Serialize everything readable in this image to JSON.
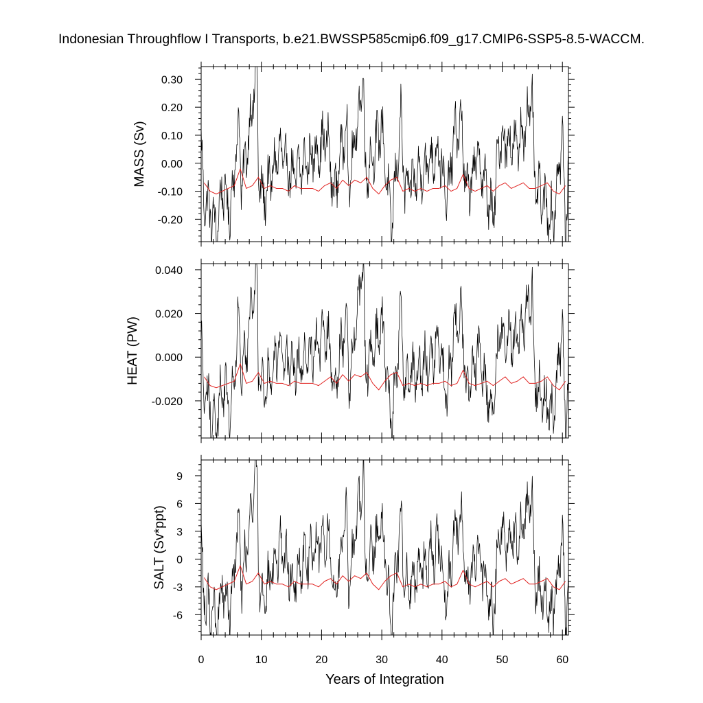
{
  "title": "Indonesian Throughflow I Transports, b.e21.BWSSP585cmip6.f09_g17.CMIP6-SSP5-8.5-WACCM.",
  "colors": {
    "raw": "#000000",
    "annual_mean": "#e0201e"
  },
  "chart_data": [
    {
      "type": "line",
      "panel": "mass",
      "ylabel": "MASS (Sv)",
      "xlim": [
        0,
        61
      ],
      "ylim": [
        -0.28,
        0.345
      ],
      "yticks": [
        -0.2,
        -0.1,
        0.0,
        0.1,
        0.2,
        0.3
      ],
      "ytick_labels": [
        "-0.20",
        "-0.10",
        "0.00",
        "0.10",
        "0.20",
        "0.30"
      ],
      "xticks": [
        0,
        10,
        20,
        30,
        40,
        50,
        60
      ],
      "xtick_labels": [],
      "xlabel": "",
      "series": [
        {
          "style": "raw_monthly",
          "color": "#000000",
          "anchors": [
            [
              0,
              0.07
            ],
            [
              0.4,
              -0.12
            ],
            [
              1.1,
              -0.15
            ],
            [
              2.6,
              -0.24
            ],
            [
              3.5,
              -0.08
            ],
            [
              4.8,
              -0.18
            ],
            [
              6.3,
              0.15
            ],
            [
              6.7,
              -0.1
            ],
            [
              9.3,
              0.345
            ],
            [
              9.5,
              -0.05
            ],
            [
              10.3,
              -0.13
            ],
            [
              13.0,
              0.04
            ],
            [
              15.3,
              -0.05
            ],
            [
              21.0,
              0.09
            ],
            [
              22.0,
              -0.12
            ],
            [
              24.2,
              0.16
            ],
            [
              24.5,
              -0.1
            ],
            [
              27.0,
              0.325
            ],
            [
              27.2,
              -0.05
            ],
            [
              30.0,
              0.13
            ],
            [
              31.6,
              -0.23
            ],
            [
              33.2,
              0.17
            ],
            [
              33.8,
              -0.1
            ],
            [
              39.5,
              0.05
            ],
            [
              40.8,
              -0.15
            ],
            [
              42.0,
              0.1
            ],
            [
              43.3,
              0.14
            ],
            [
              44.0,
              -0.12
            ],
            [
              46.0,
              0.03
            ],
            [
              48.5,
              -0.2
            ],
            [
              49.5,
              0.09
            ],
            [
              52.6,
              0.06
            ],
            [
              55.0,
              0.22
            ],
            [
              55.4,
              -0.08
            ],
            [
              58.5,
              -0.2
            ],
            [
              60.0,
              0.11
            ],
            [
              60.5,
              -0.27
            ],
            [
              61.0,
              -0.02
            ]
          ],
          "seasonal_amplitude": 0.085,
          "noise": 0.05
        },
        {
          "style": "annual_mean",
          "color": "#e0201e",
          "x": [
            0.5,
            1.5,
            2.5,
            3.5,
            4.5,
            5.5,
            6.5,
            7.5,
            8.5,
            9.5,
            10.5,
            11.5,
            12.5,
            13.5,
            14.5,
            15.5,
            16.5,
            17.5,
            18.5,
            19.5,
            20.5,
            21.5,
            22.5,
            23.5,
            24.5,
            25.5,
            26.5,
            27.5,
            28.5,
            29.5,
            30.5,
            31.5,
            32.5,
            33.5,
            34.5,
            35.5,
            36.5,
            37.5,
            38.5,
            39.5,
            40.5,
            41.5,
            42.5,
            43.5,
            44.5,
            45.5,
            46.5,
            47.5,
            48.5,
            49.5,
            50.5,
            51.5,
            52.5,
            53.5,
            54.5,
            55.5,
            56.5,
            57.5,
            58.5,
            59.5,
            60.5
          ],
          "values": [
            -0.07,
            -0.1,
            -0.11,
            -0.1,
            -0.09,
            -0.08,
            -0.02,
            -0.09,
            -0.08,
            -0.05,
            -0.09,
            -0.08,
            -0.09,
            -0.09,
            -0.1,
            -0.08,
            -0.09,
            -0.09,
            -0.09,
            -0.1,
            -0.08,
            -0.07,
            -0.09,
            -0.06,
            -0.08,
            -0.06,
            -0.07,
            -0.05,
            -0.09,
            -0.11,
            -0.08,
            -0.06,
            -0.05,
            -0.1,
            -0.09,
            -0.1,
            -0.09,
            -0.1,
            -0.09,
            -0.09,
            -0.08,
            -0.1,
            -0.09,
            -0.04,
            -0.09,
            -0.1,
            -0.09,
            -0.08,
            -0.1,
            -0.08,
            -0.07,
            -0.09,
            -0.08,
            -0.07,
            -0.09,
            -0.09,
            -0.08,
            -0.07,
            -0.1,
            -0.11,
            -0.08
          ]
        }
      ]
    },
    {
      "type": "line",
      "panel": "heat",
      "ylabel": "HEAT (PW)",
      "xlim": [
        0,
        61
      ],
      "ylim": [
        -0.037,
        0.0428
      ],
      "yticks": [
        -0.02,
        0.0,
        0.02,
        0.04
      ],
      "ytick_labels": [
        "-0.020",
        "0.000",
        "0.020",
        "0.040"
      ],
      "xticks": [
        0,
        10,
        20,
        30,
        40,
        50,
        60
      ],
      "xtick_labels": [],
      "xlabel": "",
      "series": [
        {
          "style": "raw_monthly",
          "color": "#000000",
          "anchors": [
            [
              0,
              0.009
            ],
            [
              0.4,
              -0.017
            ],
            [
              1.1,
              -0.02
            ],
            [
              2.6,
              -0.032
            ],
            [
              3.5,
              -0.011
            ],
            [
              4.8,
              -0.024
            ],
            [
              6.3,
              0.019
            ],
            [
              6.7,
              -0.013
            ],
            [
              9.3,
              0.0425
            ],
            [
              9.5,
              -0.006
            ],
            [
              10.3,
              -0.017
            ],
            [
              13.0,
              0.005
            ],
            [
              15.3,
              -0.007
            ],
            [
              21.0,
              0.011
            ],
            [
              22.0,
              -0.016
            ],
            [
              24.2,
              0.02
            ],
            [
              24.5,
              -0.013
            ],
            [
              27.0,
              0.0425
            ],
            [
              27.2,
              -0.006
            ],
            [
              30.0,
              0.016
            ],
            [
              31.6,
              -0.031
            ],
            [
              33.2,
              0.021
            ],
            [
              33.8,
              -0.013
            ],
            [
              39.5,
              0.006
            ],
            [
              40.8,
              -0.02
            ],
            [
              42.0,
              0.013
            ],
            [
              43.3,
              0.018
            ],
            [
              44.0,
              -0.016
            ],
            [
              46.0,
              0.004
            ],
            [
              48.5,
              -0.027
            ],
            [
              49.5,
              0.011
            ],
            [
              52.6,
              0.008
            ],
            [
              55.0,
              0.03
            ],
            [
              55.4,
              -0.011
            ],
            [
              58.5,
              -0.027
            ],
            [
              60.0,
              0.015
            ],
            [
              60.5,
              -0.035
            ],
            [
              61.0,
              -0.003
            ]
          ],
          "seasonal_amplitude": 0.011,
          "noise": 0.0065
        },
        {
          "style": "annual_mean",
          "color": "#e0201e",
          "x": [
            0.5,
            1.5,
            2.5,
            3.5,
            4.5,
            5.5,
            6.5,
            7.5,
            8.5,
            9.5,
            10.5,
            11.5,
            12.5,
            13.5,
            14.5,
            15.5,
            16.5,
            17.5,
            18.5,
            19.5,
            20.5,
            21.5,
            22.5,
            23.5,
            24.5,
            25.5,
            26.5,
            27.5,
            28.5,
            29.5,
            30.5,
            31.5,
            32.5,
            33.5,
            34.5,
            35.5,
            36.5,
            37.5,
            38.5,
            39.5,
            40.5,
            41.5,
            42.5,
            43.5,
            44.5,
            45.5,
            46.5,
            47.5,
            48.5,
            49.5,
            50.5,
            51.5,
            52.5,
            53.5,
            54.5,
            55.5,
            56.5,
            57.5,
            58.5,
            59.5,
            60.5
          ],
          "values": [
            -0.009,
            -0.013,
            -0.014,
            -0.013,
            -0.012,
            -0.011,
            -0.003,
            -0.012,
            -0.011,
            -0.007,
            -0.012,
            -0.011,
            -0.012,
            -0.012,
            -0.013,
            -0.011,
            -0.012,
            -0.012,
            -0.012,
            -0.013,
            -0.011,
            -0.009,
            -0.012,
            -0.008,
            -0.011,
            -0.008,
            -0.009,
            -0.007,
            -0.012,
            -0.015,
            -0.011,
            -0.008,
            -0.007,
            -0.013,
            -0.012,
            -0.013,
            -0.012,
            -0.013,
            -0.012,
            -0.012,
            -0.011,
            -0.013,
            -0.012,
            -0.006,
            -0.012,
            -0.013,
            -0.012,
            -0.011,
            -0.013,
            -0.011,
            -0.009,
            -0.012,
            -0.011,
            -0.009,
            -0.012,
            -0.012,
            -0.011,
            -0.009,
            -0.013,
            -0.015,
            -0.011
          ]
        }
      ]
    },
    {
      "type": "line",
      "panel": "salt",
      "ylabel": "SALT (Sv*ppt)",
      "xlim": [
        0,
        61
      ],
      "ylim": [
        -8.2,
        10.7
      ],
      "yticks": [
        -6,
        -3,
        0,
        3,
        6,
        9
      ],
      "ytick_labels": [
        "-6",
        "-3",
        "0",
        "3",
        "6",
        "9"
      ],
      "xticks": [
        0,
        10,
        20,
        30,
        40,
        50,
        60
      ],
      "xtick_labels": [
        "0",
        "10",
        "20",
        "30",
        "40",
        "50",
        "60"
      ],
      "xlabel": "Years of Integration",
      "series": [
        {
          "style": "raw_monthly",
          "color": "#000000",
          "anchors": [
            [
              0,
              2.2
            ],
            [
              0.4,
              -4.0
            ],
            [
              1.1,
              -5.0
            ],
            [
              2.6,
              -7.2
            ],
            [
              3.5,
              -2.5
            ],
            [
              4.8,
              -5.8
            ],
            [
              6.3,
              4.7
            ],
            [
              6.7,
              -3.0
            ],
            [
              9.3,
              10.5
            ],
            [
              9.5,
              -1.5
            ],
            [
              10.3,
              -4.3
            ],
            [
              13.0,
              1.2
            ],
            [
              15.3,
              -1.8
            ],
            [
              21.0,
              2.8
            ],
            [
              22.0,
              -4.0
            ],
            [
              24.2,
              4.8
            ],
            [
              24.5,
              -3.2
            ],
            [
              27.0,
              9.7
            ],
            [
              27.2,
              -1.5
            ],
            [
              30.0,
              3.8
            ],
            [
              31.6,
              -7.0
            ],
            [
              33.2,
              5.0
            ],
            [
              33.8,
              -3.2
            ],
            [
              39.5,
              1.5
            ],
            [
              40.8,
              -4.8
            ],
            [
              42.0,
              3.0
            ],
            [
              43.3,
              4.3
            ],
            [
              44.0,
              -3.7
            ],
            [
              46.0,
              1.0
            ],
            [
              48.5,
              -6.3
            ],
            [
              49.5,
              2.7
            ],
            [
              52.6,
              1.8
            ],
            [
              55.0,
              6.7
            ],
            [
              55.4,
              -2.5
            ],
            [
              58.5,
              -6.0
            ],
            [
              60.0,
              3.3
            ],
            [
              60.5,
              -7.8
            ],
            [
              61.0,
              -0.5
            ]
          ],
          "seasonal_amplitude": 2.6,
          "noise": 1.5
        },
        {
          "style": "annual_mean",
          "color": "#e0201e",
          "x": [
            0.5,
            1.5,
            2.5,
            3.5,
            4.5,
            5.5,
            6.5,
            7.5,
            8.5,
            9.5,
            10.5,
            11.5,
            12.5,
            13.5,
            14.5,
            15.5,
            16.5,
            17.5,
            18.5,
            19.5,
            20.5,
            21.5,
            22.5,
            23.5,
            24.5,
            25.5,
            26.5,
            27.5,
            28.5,
            29.5,
            30.5,
            31.5,
            32.5,
            33.5,
            34.5,
            35.5,
            36.5,
            37.5,
            38.5,
            39.5,
            40.5,
            41.5,
            42.5,
            43.5,
            44.5,
            45.5,
            46.5,
            47.5,
            48.5,
            49.5,
            50.5,
            51.5,
            52.5,
            53.5,
            54.5,
            55.5,
            56.5,
            57.5,
            58.5,
            59.5,
            60.5
          ],
          "values": [
            -2.0,
            -3.0,
            -3.3,
            -3.0,
            -2.7,
            -2.4,
            -0.7,
            -2.7,
            -2.4,
            -1.5,
            -2.7,
            -2.4,
            -2.7,
            -2.7,
            -3.0,
            -2.4,
            -2.7,
            -2.7,
            -2.7,
            -3.0,
            -2.4,
            -2.1,
            -2.7,
            -1.8,
            -2.4,
            -1.8,
            -2.1,
            -1.5,
            -2.7,
            -3.3,
            -2.4,
            -1.8,
            -1.5,
            -3.0,
            -2.7,
            -3.0,
            -2.7,
            -3.0,
            -2.7,
            -2.7,
            -2.4,
            -3.0,
            -2.7,
            -1.2,
            -2.7,
            -3.0,
            -2.7,
            -2.4,
            -3.0,
            -2.4,
            -2.1,
            -2.7,
            -2.4,
            -2.1,
            -2.7,
            -2.7,
            -2.4,
            -2.1,
            -3.0,
            -3.3,
            -2.4
          ]
        }
      ]
    }
  ]
}
